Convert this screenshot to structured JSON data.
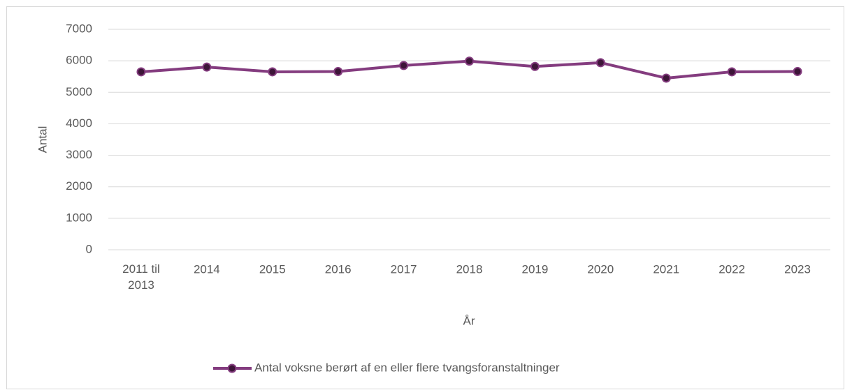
{
  "chart_data": {
    "type": "line",
    "x_label": "År",
    "y_label": "Antal",
    "categories": [
      "2011 til 2013",
      "2014",
      "2015",
      "2016",
      "2017",
      "2018",
      "2019",
      "2020",
      "2021",
      "2022",
      "2023"
    ],
    "series": [
      {
        "name": "Antal voksne berørt af en eller flere tvangsforanstaltninger",
        "color": "#843c7f",
        "values": [
          5650,
          5800,
          5650,
          5660,
          5850,
          5990,
          5820,
          5940,
          5450,
          5650,
          5660
        ]
      }
    ],
    "ylim": [
      0,
      7000
    ],
    "yticks": [
      0,
      1000,
      2000,
      3000,
      4000,
      5000,
      6000,
      7000
    ],
    "grid": true,
    "legend": "bottom"
  }
}
